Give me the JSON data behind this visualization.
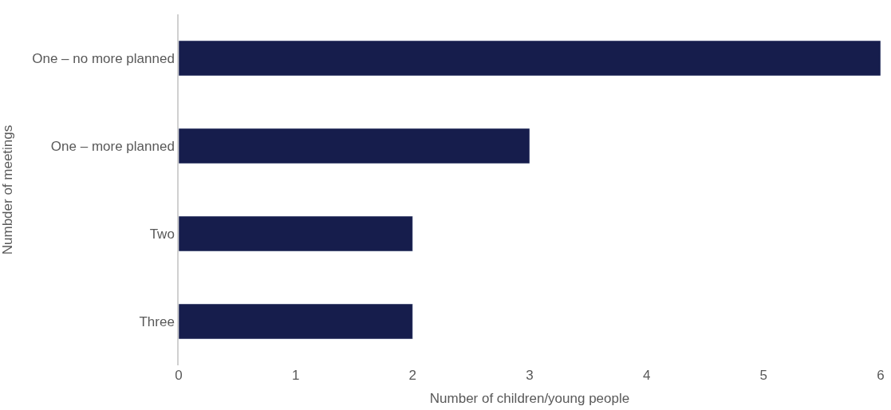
{
  "chart_data": {
    "type": "bar",
    "orientation": "horizontal",
    "xlabel": "Number of children/young people",
    "ylabel": "Numbder of meetings",
    "categories": [
      "One – no more planned",
      "One – more planned",
      "Two",
      "Three"
    ],
    "values": [
      6,
      3,
      2,
      2
    ],
    "color": "#161d4c",
    "xlim": [
      0,
      6
    ],
    "xticks": [
      0,
      1,
      2,
      3,
      4,
      5,
      6
    ]
  }
}
